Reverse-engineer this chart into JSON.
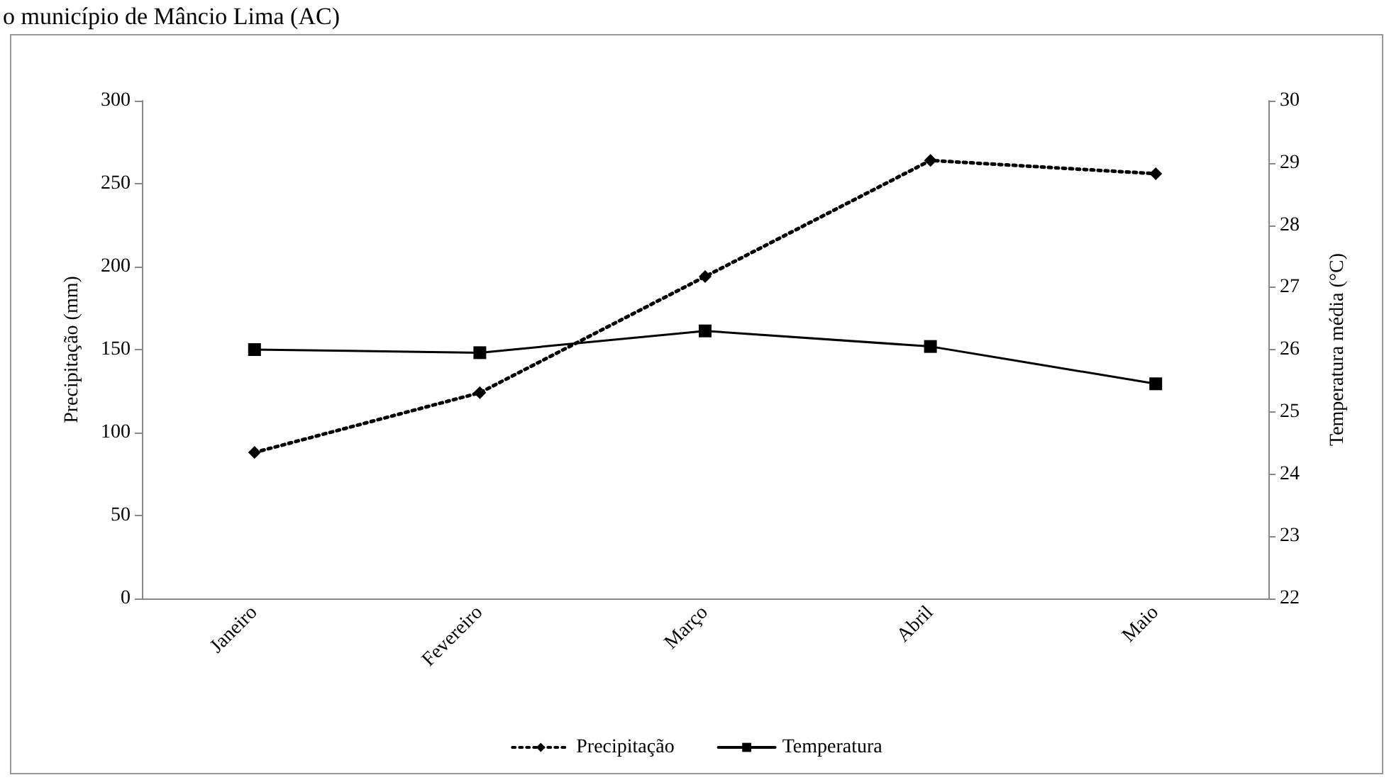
{
  "chart_data": {
    "type": "line",
    "title": "o município de Mâncio Lima (AC)",
    "categories": [
      "Janeiro",
      "Fevereiro",
      "Março",
      "Abril",
      "Maio"
    ],
    "series": [
      {
        "name": "Precipitação",
        "color": "#000000",
        "values": [
          88,
          124,
          194,
          264,
          256
        ],
        "marker": "diamond",
        "line_style": "dotted"
      },
      {
        "name": "Temperatura",
        "color": "#000000",
        "values": [
          26.0,
          25.95,
          26.3,
          26.05,
          25.45
        ],
        "marker": "square",
        "line_style": "solid",
        "axis": "y2"
      }
    ],
    "ylabel": "Precipitação (mm)",
    "y2label": "Temperatura média (°C)",
    "ylim": [
      0,
      300
    ],
    "yticks": [
      0,
      50,
      100,
      150,
      200,
      250,
      300
    ],
    "y2lim": [
      22,
      30
    ],
    "y2ticks": [
      22,
      23,
      24,
      25,
      26,
      27,
      28,
      29,
      30
    ],
    "grid": false,
    "legend": "bottom"
  }
}
